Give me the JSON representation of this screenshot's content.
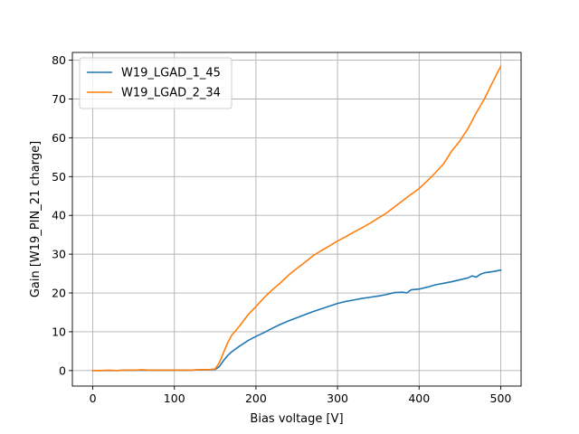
{
  "chart_data": {
    "type": "line",
    "title": "",
    "xlabel": "Bias voltage [V]",
    "ylabel": "Gain [W19_PIN_21 charge]",
    "xlim": [
      -25,
      525
    ],
    "ylim": [
      -4,
      82
    ],
    "xticks": [
      0,
      100,
      200,
      300,
      400,
      500
    ],
    "yticks": [
      0,
      10,
      20,
      30,
      40,
      50,
      60,
      70,
      80
    ],
    "grid": true,
    "legend_position": "top-left",
    "series": [
      {
        "name": "W19_LGAD_1_45",
        "color": "#1f77b4",
        "x": [
          0,
          10,
          20,
          30,
          40,
          50,
          60,
          70,
          80,
          90,
          100,
          110,
          120,
          130,
          140,
          150,
          155,
          160,
          165,
          170,
          180,
          190,
          200,
          210,
          220,
          230,
          240,
          250,
          260,
          270,
          280,
          290,
          300,
          310,
          320,
          330,
          340,
          350,
          360,
          370,
          380,
          385,
          390,
          400,
          410,
          420,
          430,
          440,
          450,
          460,
          465,
          470,
          475,
          480,
          490,
          500
        ],
        "y": [
          0,
          0,
          0,
          0,
          0.1,
          0.1,
          0.1,
          0.1,
          0.1,
          0.1,
          0.1,
          0.1,
          0.1,
          0.2,
          0.2,
          0.3,
          1.0,
          2.5,
          3.8,
          4.8,
          6.3,
          7.7,
          8.8,
          9.8,
          10.9,
          11.9,
          12.8,
          13.6,
          14.4,
          15.2,
          15.9,
          16.6,
          17.3,
          17.8,
          18.2,
          18.6,
          18.9,
          19.2,
          19.6,
          20.1,
          20.2,
          20.0,
          20.8,
          21.0,
          21.5,
          22.1,
          22.5,
          22.9,
          23.4,
          23.9,
          24.4,
          24.1,
          24.8,
          25.2,
          25.5,
          25.9
        ]
      },
      {
        "name": "W19_LGAD_2_34",
        "color": "#ff7f0e",
        "x": [
          0,
          10,
          20,
          30,
          40,
          50,
          60,
          70,
          80,
          90,
          100,
          110,
          120,
          130,
          140,
          150,
          155,
          160,
          165,
          170,
          180,
          190,
          200,
          210,
          220,
          230,
          240,
          250,
          260,
          270,
          280,
          290,
          300,
          310,
          320,
          330,
          340,
          350,
          360,
          370,
          380,
          390,
          400,
          410,
          420,
          430,
          440,
          450,
          460,
          470,
          480,
          490,
          500
        ],
        "y": [
          0,
          0,
          0.1,
          0,
          0.1,
          0.1,
          0.2,
          0.1,
          0.1,
          0.1,
          0.1,
          0.1,
          0.1,
          0.2,
          0.2,
          0.4,
          2.0,
          4.5,
          7.0,
          9.0,
          11.5,
          14.3,
          16.5,
          18.8,
          20.8,
          22.6,
          24.6,
          26.3,
          27.9,
          29.6,
          30.9,
          32.1,
          33.4,
          34.5,
          35.7,
          36.8,
          38.0,
          39.3,
          40.6,
          42.2,
          43.8,
          45.4,
          46.9,
          48.9,
          51.0,
          53.3,
          56.6,
          59.2,
          62.4,
          66.4,
          70.0,
          74.3,
          78.4
        ]
      }
    ]
  }
}
